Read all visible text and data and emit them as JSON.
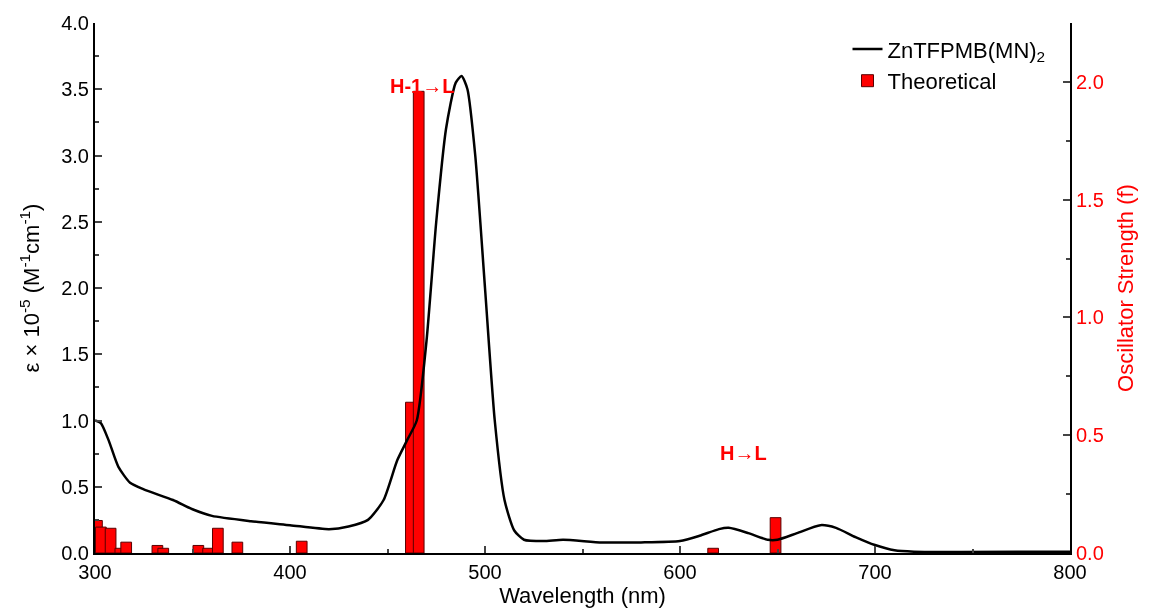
{
  "chart_data": {
    "type": "line",
    "xlabel": "Wavelength (nm)",
    "ylabel": "ε × 10$^{-5}$ (M$^{-1}$cm$^{-1}$)",
    "y2label": "Oscillator Strength (f)",
    "xlim": [
      300,
      800
    ],
    "xticks": [
      300,
      400,
      500,
      600,
      700,
      800
    ],
    "ylim": [
      0,
      4.0
    ],
    "yticks": [
      {
        "value": 0,
        "label": "0.0"
      },
      {
        "value": 0.5,
        "label": "0.5"
      },
      {
        "value": 1,
        "label": "1.0"
      },
      {
        "value": 1.5,
        "label": "1.5"
      },
      {
        "value": 2,
        "label": "2.0"
      },
      {
        "value": 2.5,
        "label": "2.5"
      },
      {
        "value": 3,
        "label": "3.0"
      },
      {
        "value": 3.5,
        "label": "3.5"
      },
      {
        "value": 4,
        "label": "4.0"
      }
    ],
    "y2lim": [
      0,
      2.25
    ],
    "y2ticks": [
      {
        "value": 0,
        "label": "0.0"
      },
      {
        "value": 0.5,
        "label": "0.5"
      },
      {
        "value": 1,
        "label": "1.0"
      },
      {
        "value": 1.5,
        "label": "1.5"
      },
      {
        "value": 2,
        "label": "2.0"
      }
    ],
    "legend": "top right",
    "series": [
      {
        "name": "ZnTFPMB(MN)$_{2}$",
        "color": "#000000",
        "x": [
          300,
          303,
          307,
          312,
          318,
          325,
          340,
          350,
          360,
          380,
          400,
          420,
          430,
          440,
          448,
          455,
          460,
          465,
          470,
          475,
          480,
          485,
          488,
          491,
          495,
          500,
          505,
          510,
          515,
          520,
          530,
          540,
          560,
          580,
          600,
          610,
          620,
          625,
          635,
          645,
          650,
          660,
          672,
          680,
          690,
          700,
          710,
          720,
          800
        ],
        "values": [
          1.0,
          0.98,
          0.85,
          0.65,
          0.53,
          0.48,
          0.4,
          0.33,
          0.28,
          0.24,
          0.21,
          0.18,
          0.2,
          0.25,
          0.4,
          0.7,
          0.85,
          1.0,
          1.6,
          2.5,
          3.2,
          3.55,
          3.6,
          3.5,
          3.0,
          2.0,
          1.0,
          0.4,
          0.17,
          0.1,
          0.09,
          0.1,
          0.08,
          0.08,
          0.09,
          0.13,
          0.18,
          0.19,
          0.15,
          0.1,
          0.1,
          0.15,
          0.21,
          0.19,
          0.12,
          0.06,
          0.02,
          0.01,
          0.01
        ]
      },
      {
        "name": "Theoretical",
        "type": "bar",
        "axis": "y2",
        "color": "#ff0000",
        "x": [
          301,
          303,
          308,
          313,
          316,
          332,
          335,
          353,
          358,
          363,
          373,
          406,
          462,
          466,
          617,
          649
        ],
        "values": [
          0.138,
          0.11,
          0.105,
          0.02,
          0.046,
          0.032,
          0.02,
          0.032,
          0.02,
          0.105,
          0.046,
          0.05,
          0.64,
          1.96,
          0.02,
          0.15
        ]
      }
    ],
    "annotations": [
      "H-1→L",
      "H→L"
    ]
  }
}
